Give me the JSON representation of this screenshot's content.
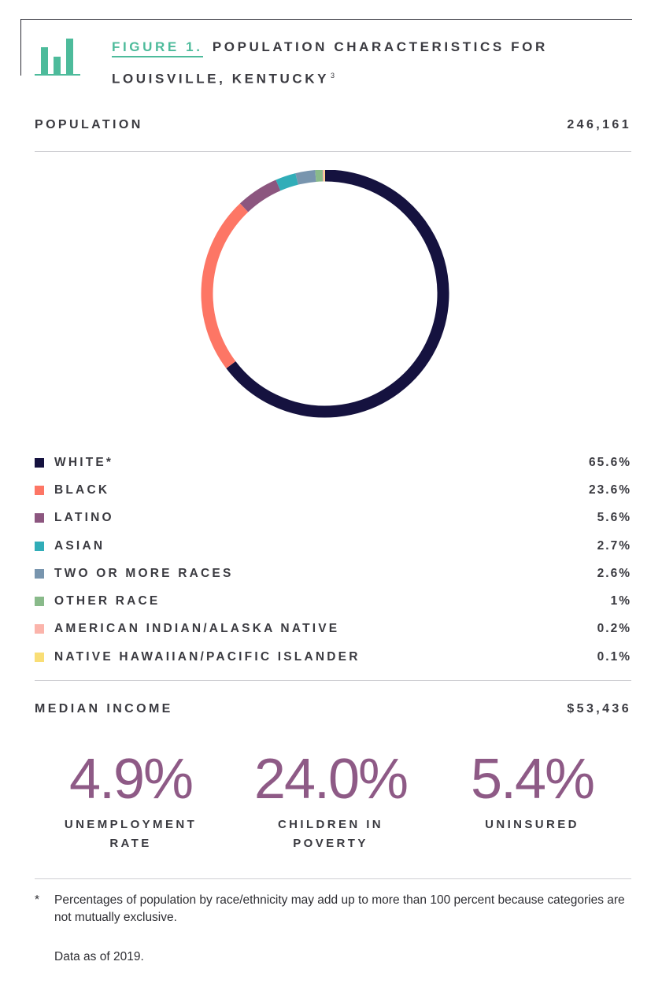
{
  "figure": {
    "label": "FIGURE 1.",
    "title": "POPULATION CHARACTERISTICS FOR LOUISVILLE, KENTUCKY",
    "footnote_ref": "3",
    "icon": "bar-chart-icon",
    "accent_color": "#4dbb9b"
  },
  "population": {
    "label": "POPULATION",
    "value": "246,161"
  },
  "chart_data": {
    "type": "pie",
    "style": "donut",
    "categories": [
      "WHITE*",
      "BLACK",
      "LATINO",
      "ASIAN",
      "TWO OR MORE RACES",
      "OTHER RACE",
      "AMERICAN INDIAN/ALASKA NATIVE",
      "NATIVE HAWAIIAN/PACIFIC ISLANDER"
    ],
    "values": [
      65.6,
      23.6,
      5.6,
      2.7,
      2.6,
      1,
      0.2,
      0.1
    ],
    "colors": [
      "#15123f",
      "#fd7665",
      "#8c567f",
      "#31adb8",
      "#7895ae",
      "#89ba8a",
      "#fbb4ab",
      "#f9de76"
    ],
    "legend_placement": "bottom"
  },
  "legend": [
    {
      "label": "WHITE*",
      "value": "65.6%",
      "color": "#15123f"
    },
    {
      "label": "BLACK",
      "value": "23.6%",
      "color": "#fd7665"
    },
    {
      "label": "LATINO",
      "value": "5.6%",
      "color": "#8c567f"
    },
    {
      "label": "ASIAN",
      "value": "2.7%",
      "color": "#31adb8"
    },
    {
      "label": "TWO OR MORE RACES",
      "value": "2.6%",
      "color": "#7895ae"
    },
    {
      "label": "OTHER RACE",
      "value": "1%",
      "color": "#89ba8a"
    },
    {
      "label": "AMERICAN INDIAN/ALASKA NATIVE",
      "value": "0.2%",
      "color": "#fbb4ab"
    },
    {
      "label": "NATIVE HAWAIIAN/PACIFIC ISLANDER",
      "value": "0.1%",
      "color": "#f9de76"
    }
  ],
  "income": {
    "label": "MEDIAN INCOME",
    "value": "$53,436"
  },
  "stats": [
    {
      "value": "4.9%",
      "label_line1": "UNEMPLOYMENT",
      "label_line2": "RATE"
    },
    {
      "value": "24.0%",
      "label_line1": "CHILDREN IN",
      "label_line2": "POVERTY"
    },
    {
      "value": "5.4%",
      "label_line1": "UNINSURED",
      "label_line2": ""
    }
  ],
  "footnote": {
    "mark": "*",
    "text": "Percentages of population by race/ethnicity may add up to more than 100 percent because categories are not mutually exclusive."
  },
  "data_note": "Data as of 2019."
}
